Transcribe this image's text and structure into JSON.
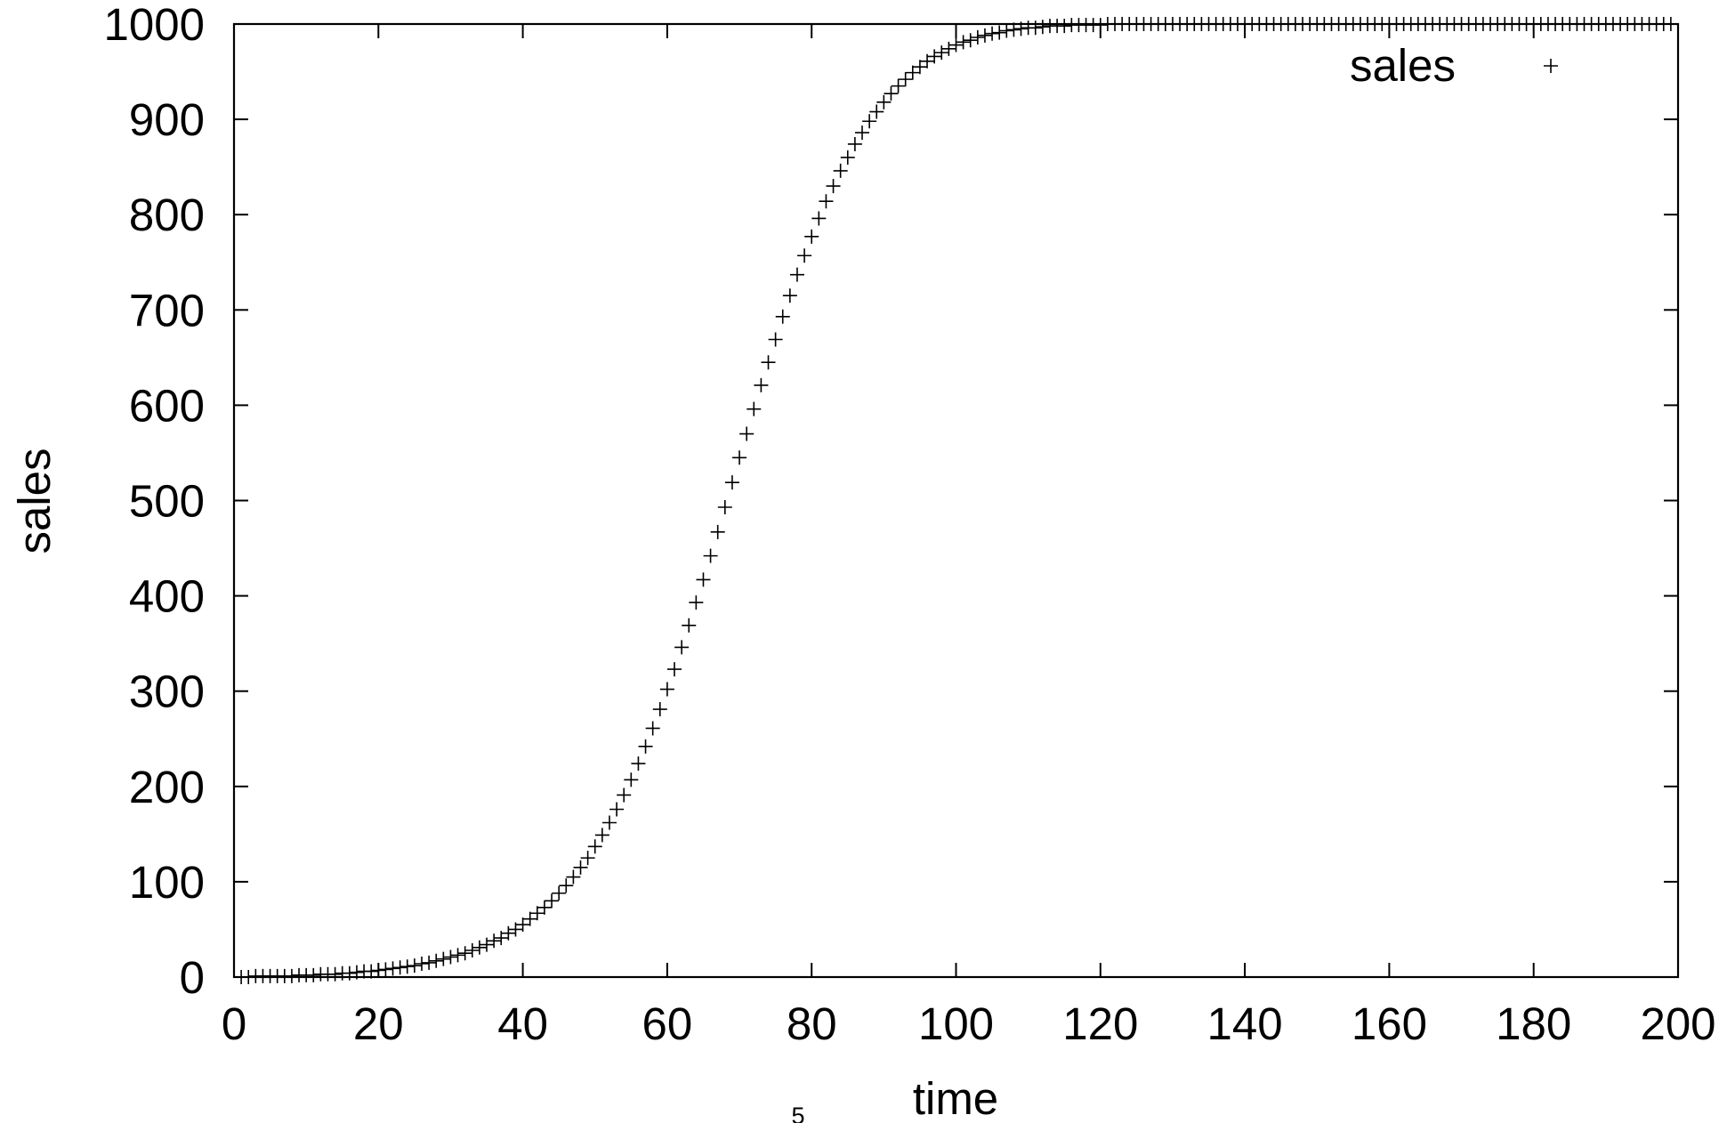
{
  "page": {
    "number": "5"
  },
  "chart_data": {
    "type": "scatter",
    "title": "",
    "xlabel": "time",
    "ylabel": "sales",
    "xlim": [
      0,
      200
    ],
    "ylim": [
      0,
      1000
    ],
    "xticks": [
      "0",
      "20",
      "40",
      "60",
      "80",
      "100",
      "120",
      "140",
      "160",
      "180",
      "200"
    ],
    "yticks": [
      "0",
      "100",
      "200",
      "300",
      "400",
      "500",
      "600",
      "700",
      "800",
      "900",
      "1000"
    ],
    "grid": false,
    "legend": {
      "position": "top-right",
      "entries": [
        "sales"
      ]
    },
    "marker": "plus",
    "color": "#000000",
    "series": [
      {
        "name": "sales",
        "x": [
          1,
          2,
          3,
          4,
          5,
          6,
          7,
          8,
          9,
          10,
          11,
          12,
          13,
          14,
          15,
          16,
          17,
          18,
          19,
          20,
          21,
          22,
          23,
          24,
          25,
          26,
          27,
          28,
          29,
          30,
          31,
          32,
          33,
          34,
          35,
          36,
          37,
          38,
          39,
          40,
          41,
          42,
          43,
          44,
          45,
          46,
          47,
          48,
          49,
          50,
          51,
          52,
          53,
          54,
          55,
          56,
          57,
          58,
          59,
          60,
          61,
          62,
          63,
          64,
          65,
          66,
          67,
          68,
          69,
          70,
          71,
          72,
          73,
          74,
          75,
          76,
          77,
          78,
          79,
          80,
          81,
          82,
          83,
          84,
          85,
          86,
          87,
          88,
          89,
          90,
          91,
          92,
          93,
          94,
          95,
          96,
          97,
          98,
          99,
          100,
          101,
          102,
          103,
          104,
          105,
          106,
          107,
          108,
          109,
          110,
          111,
          112,
          113,
          114,
          115,
          116,
          117,
          118,
          119,
          120,
          121,
          122,
          123,
          124,
          125,
          126,
          127,
          128,
          129,
          130,
          131,
          132,
          133,
          134,
          135,
          136,
          137,
          138,
          139,
          140,
          141,
          142,
          143,
          144,
          145,
          146,
          147,
          148,
          149,
          150,
          151,
          152,
          153,
          154,
          155,
          156,
          157,
          158,
          159,
          160,
          161,
          162,
          163,
          164,
          165,
          166,
          167,
          168,
          169,
          170,
          171,
          172,
          173,
          174,
          175,
          176,
          177,
          178,
          179,
          180,
          181,
          182,
          183,
          184,
          185,
          186,
          187,
          188,
          189,
          190,
          191,
          192,
          193,
          194,
          195,
          196,
          197,
          198,
          199
        ],
        "y": [
          0,
          0,
          1,
          1,
          1,
          1,
          1,
          1,
          2,
          2,
          2,
          3,
          3,
          3,
          4,
          4,
          5,
          6,
          6,
          7,
          8,
          9,
          10,
          11,
          12,
          14,
          15,
          17,
          19,
          21,
          23,
          25,
          28,
          31,
          34,
          38,
          41,
          46,
          50,
          55,
          61,
          67,
          73,
          80,
          88,
          96,
          105,
          115,
          125,
          137,
          149,
          162,
          176,
          191,
          207,
          224,
          242,
          261,
          281,
          302,
          323,
          346,
          369,
          393,
          417,
          442,
          467,
          493,
          519,
          545,
          570,
          596,
          621,
          645,
          669,
          693,
          715,
          737,
          757,
          777,
          796,
          814,
          830,
          846,
          860,
          874,
          886,
          898,
          908,
          918,
          927,
          935,
          942,
          949,
          955,
          961,
          966,
          970,
          974,
          978,
          981,
          983,
          986,
          988,
          990,
          991,
          993,
          994,
          995,
          996,
          996,
          997,
          998,
          998,
          998,
          999,
          999,
          999,
          999,
          999,
          1000,
          1000,
          1000,
          1000,
          1000,
          1000,
          1000,
          1000,
          1000,
          1000,
          1000,
          1000,
          1000,
          1000,
          1000,
          1000,
          1000,
          1000,
          1000,
          1000,
          1000,
          1000,
          1000,
          1000,
          1000,
          1000,
          1000,
          1000,
          1000,
          1000,
          1000,
          1000,
          1000,
          1000,
          1000,
          1000,
          1000,
          1000,
          1000,
          1000,
          1000,
          1000,
          1000,
          1000,
          1000,
          1000,
          1000,
          1000,
          1000,
          1000,
          1000,
          1000,
          1000,
          1000,
          1000,
          1000,
          1000,
          1000,
          1000,
          1000,
          1000,
          1000,
          1000,
          1000,
          1000,
          1000,
          1000,
          1000,
          1000,
          1000,
          1000,
          1000,
          1000,
          1000,
          1000,
          1000,
          1000,
          1000,
          1000
        ]
      }
    ]
  }
}
